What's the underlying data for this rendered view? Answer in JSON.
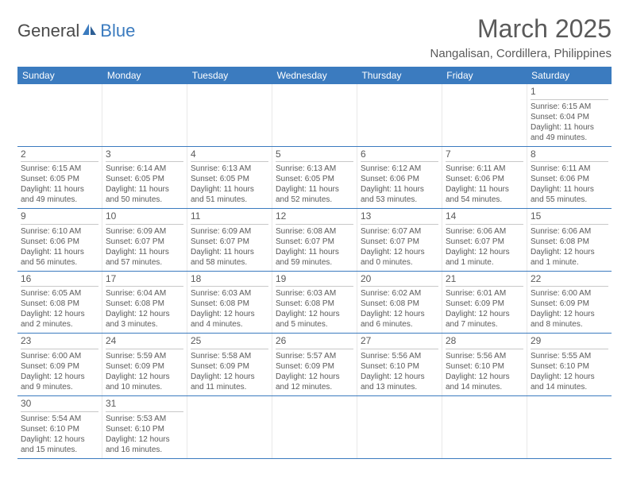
{
  "logo": {
    "text1": "General",
    "text2": "Blue"
  },
  "title": "March 2025",
  "location": "Nangalisan, Cordillera, Philippines",
  "weekdays": [
    "Sunday",
    "Monday",
    "Tuesday",
    "Wednesday",
    "Thursday",
    "Friday",
    "Saturday"
  ],
  "colors": {
    "header_bg": "#3b7bbf",
    "text": "#5a5a5a",
    "grid": "#e8e8e8"
  },
  "weeks": [
    [
      null,
      null,
      null,
      null,
      null,
      null,
      {
        "n": "1",
        "sr": "Sunrise: 6:15 AM",
        "ss": "Sunset: 6:04 PM",
        "d1": "Daylight: 11 hours",
        "d2": "and 49 minutes."
      }
    ],
    [
      {
        "n": "2",
        "sr": "Sunrise: 6:15 AM",
        "ss": "Sunset: 6:05 PM",
        "d1": "Daylight: 11 hours",
        "d2": "and 49 minutes."
      },
      {
        "n": "3",
        "sr": "Sunrise: 6:14 AM",
        "ss": "Sunset: 6:05 PM",
        "d1": "Daylight: 11 hours",
        "d2": "and 50 minutes."
      },
      {
        "n": "4",
        "sr": "Sunrise: 6:13 AM",
        "ss": "Sunset: 6:05 PM",
        "d1": "Daylight: 11 hours",
        "d2": "and 51 minutes."
      },
      {
        "n": "5",
        "sr": "Sunrise: 6:13 AM",
        "ss": "Sunset: 6:05 PM",
        "d1": "Daylight: 11 hours",
        "d2": "and 52 minutes."
      },
      {
        "n": "6",
        "sr": "Sunrise: 6:12 AM",
        "ss": "Sunset: 6:06 PM",
        "d1": "Daylight: 11 hours",
        "d2": "and 53 minutes."
      },
      {
        "n": "7",
        "sr": "Sunrise: 6:11 AM",
        "ss": "Sunset: 6:06 PM",
        "d1": "Daylight: 11 hours",
        "d2": "and 54 minutes."
      },
      {
        "n": "8",
        "sr": "Sunrise: 6:11 AM",
        "ss": "Sunset: 6:06 PM",
        "d1": "Daylight: 11 hours",
        "d2": "and 55 minutes."
      }
    ],
    [
      {
        "n": "9",
        "sr": "Sunrise: 6:10 AM",
        "ss": "Sunset: 6:06 PM",
        "d1": "Daylight: 11 hours",
        "d2": "and 56 minutes."
      },
      {
        "n": "10",
        "sr": "Sunrise: 6:09 AM",
        "ss": "Sunset: 6:07 PM",
        "d1": "Daylight: 11 hours",
        "d2": "and 57 minutes."
      },
      {
        "n": "11",
        "sr": "Sunrise: 6:09 AM",
        "ss": "Sunset: 6:07 PM",
        "d1": "Daylight: 11 hours",
        "d2": "and 58 minutes."
      },
      {
        "n": "12",
        "sr": "Sunrise: 6:08 AM",
        "ss": "Sunset: 6:07 PM",
        "d1": "Daylight: 11 hours",
        "d2": "and 59 minutes."
      },
      {
        "n": "13",
        "sr": "Sunrise: 6:07 AM",
        "ss": "Sunset: 6:07 PM",
        "d1": "Daylight: 12 hours",
        "d2": "and 0 minutes."
      },
      {
        "n": "14",
        "sr": "Sunrise: 6:06 AM",
        "ss": "Sunset: 6:07 PM",
        "d1": "Daylight: 12 hours",
        "d2": "and 1 minute."
      },
      {
        "n": "15",
        "sr": "Sunrise: 6:06 AM",
        "ss": "Sunset: 6:08 PM",
        "d1": "Daylight: 12 hours",
        "d2": "and 1 minute."
      }
    ],
    [
      {
        "n": "16",
        "sr": "Sunrise: 6:05 AM",
        "ss": "Sunset: 6:08 PM",
        "d1": "Daylight: 12 hours",
        "d2": "and 2 minutes."
      },
      {
        "n": "17",
        "sr": "Sunrise: 6:04 AM",
        "ss": "Sunset: 6:08 PM",
        "d1": "Daylight: 12 hours",
        "d2": "and 3 minutes."
      },
      {
        "n": "18",
        "sr": "Sunrise: 6:03 AM",
        "ss": "Sunset: 6:08 PM",
        "d1": "Daylight: 12 hours",
        "d2": "and 4 minutes."
      },
      {
        "n": "19",
        "sr": "Sunrise: 6:03 AM",
        "ss": "Sunset: 6:08 PM",
        "d1": "Daylight: 12 hours",
        "d2": "and 5 minutes."
      },
      {
        "n": "20",
        "sr": "Sunrise: 6:02 AM",
        "ss": "Sunset: 6:08 PM",
        "d1": "Daylight: 12 hours",
        "d2": "and 6 minutes."
      },
      {
        "n": "21",
        "sr": "Sunrise: 6:01 AM",
        "ss": "Sunset: 6:09 PM",
        "d1": "Daylight: 12 hours",
        "d2": "and 7 minutes."
      },
      {
        "n": "22",
        "sr": "Sunrise: 6:00 AM",
        "ss": "Sunset: 6:09 PM",
        "d1": "Daylight: 12 hours",
        "d2": "and 8 minutes."
      }
    ],
    [
      {
        "n": "23",
        "sr": "Sunrise: 6:00 AM",
        "ss": "Sunset: 6:09 PM",
        "d1": "Daylight: 12 hours",
        "d2": "and 9 minutes."
      },
      {
        "n": "24",
        "sr": "Sunrise: 5:59 AM",
        "ss": "Sunset: 6:09 PM",
        "d1": "Daylight: 12 hours",
        "d2": "and 10 minutes."
      },
      {
        "n": "25",
        "sr": "Sunrise: 5:58 AM",
        "ss": "Sunset: 6:09 PM",
        "d1": "Daylight: 12 hours",
        "d2": "and 11 minutes."
      },
      {
        "n": "26",
        "sr": "Sunrise: 5:57 AM",
        "ss": "Sunset: 6:09 PM",
        "d1": "Daylight: 12 hours",
        "d2": "and 12 minutes."
      },
      {
        "n": "27",
        "sr": "Sunrise: 5:56 AM",
        "ss": "Sunset: 6:10 PM",
        "d1": "Daylight: 12 hours",
        "d2": "and 13 minutes."
      },
      {
        "n": "28",
        "sr": "Sunrise: 5:56 AM",
        "ss": "Sunset: 6:10 PM",
        "d1": "Daylight: 12 hours",
        "d2": "and 14 minutes."
      },
      {
        "n": "29",
        "sr": "Sunrise: 5:55 AM",
        "ss": "Sunset: 6:10 PM",
        "d1": "Daylight: 12 hours",
        "d2": "and 14 minutes."
      }
    ],
    [
      {
        "n": "30",
        "sr": "Sunrise: 5:54 AM",
        "ss": "Sunset: 6:10 PM",
        "d1": "Daylight: 12 hours",
        "d2": "and 15 minutes."
      },
      {
        "n": "31",
        "sr": "Sunrise: 5:53 AM",
        "ss": "Sunset: 6:10 PM",
        "d1": "Daylight: 12 hours",
        "d2": "and 16 minutes."
      },
      null,
      null,
      null,
      null,
      null
    ]
  ]
}
